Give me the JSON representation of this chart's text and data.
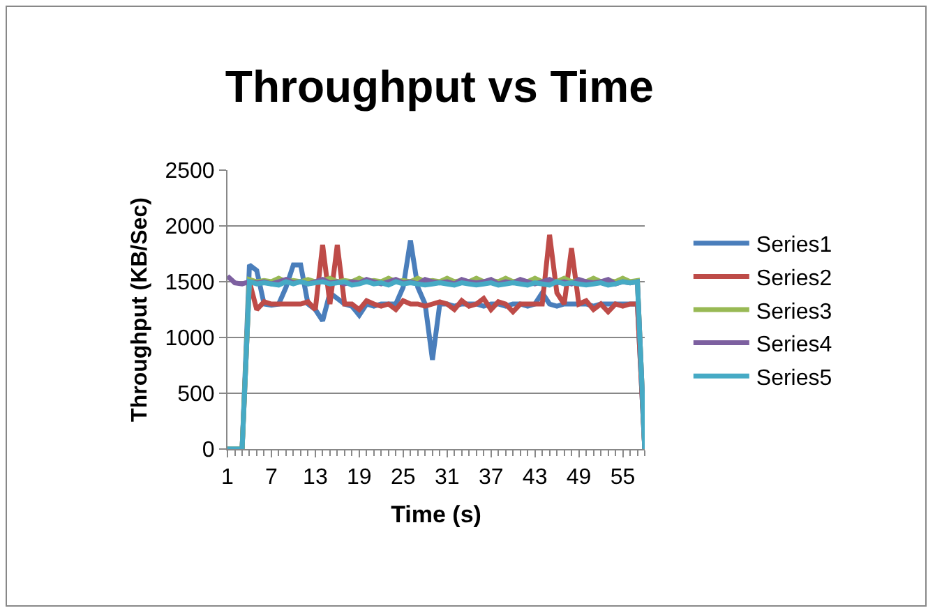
{
  "chart_data": {
    "type": "line",
    "title": "Throughput vs Time",
    "xlabel": "Time (s)",
    "ylabel": "Throughput (KB/Sec)",
    "categories": [
      "1",
      null,
      null,
      null,
      null,
      null,
      "7",
      null,
      null,
      null,
      null,
      null,
      "13",
      null,
      null,
      null,
      null,
      null,
      "19",
      null,
      null,
      null,
      null,
      null,
      "25",
      null,
      null,
      null,
      null,
      null,
      "31",
      null,
      null,
      null,
      null,
      null,
      "37",
      null,
      null,
      null,
      null,
      null,
      "43",
      null,
      null,
      null,
      null,
      null,
      "49",
      null,
      null,
      null,
      null,
      null,
      "55",
      null,
      null,
      null
    ],
    "series": [
      {
        "name": "Series1",
        "color": "#4a7ebb",
        "values": [
          0,
          0,
          0,
          1650,
          1600,
          1300,
          1290,
          1300,
          1450,
          1650,
          1650,
          1300,
          1250,
          1150,
          1400,
          1350,
          1300,
          1280,
          1200,
          1300,
          1280,
          1300,
          1300,
          1300,
          1450,
          1870,
          1450,
          1300,
          800,
          1300,
          1300,
          1280,
          1300,
          1300,
          1300,
          1280,
          1300,
          1300,
          1280,
          1300,
          1300,
          1280,
          1300,
          1400,
          1300,
          1280,
          1300,
          1300,
          1300,
          1300,
          1280,
          1300,
          1300,
          1300,
          1300,
          1300,
          1300,
          0
        ]
      },
      {
        "name": "Series2",
        "color": "#be4b48",
        "values": [
          null,
          null,
          0,
          1500,
          1250,
          1320,
          1300,
          1300,
          1300,
          1300,
          1300,
          1320,
          1250,
          1830,
          1300,
          1830,
          1300,
          1300,
          1250,
          1330,
          1300,
          1280,
          1300,
          1250,
          1330,
          1300,
          1300,
          1280,
          1300,
          1320,
          1300,
          1250,
          1330,
          1280,
          1300,
          1350,
          1250,
          1320,
          1300,
          1230,
          1300,
          1300,
          1300,
          1300,
          1920,
          1400,
          1300,
          1800,
          1300,
          1330,
          1250,
          1300,
          1230,
          1300,
          1280,
          1300,
          1300,
          0
        ]
      },
      {
        "name": "Series3",
        "color": "#98b954",
        "values": [
          0,
          0,
          0,
          1520,
          1500,
          1510,
          1500,
          1530,
          1500,
          1510,
          1500,
          1520,
          1500,
          1510,
          1530,
          1500,
          1510,
          1500,
          1530,
          1500,
          1510,
          1500,
          1530,
          1500,
          1510,
          1500,
          1530,
          1500,
          1510,
          1500,
          1530,
          1500,
          1510,
          1500,
          1530,
          1500,
          1510,
          1500,
          1530,
          1500,
          1510,
          1500,
          1530,
          1500,
          1510,
          1500,
          1530,
          1500,
          1510,
          1500,
          1530,
          1500,
          1510,
          1500,
          1530,
          1500,
          1510,
          0
        ]
      },
      {
        "name": "Series4",
        "color": "#7d60a0",
        "values": [
          1550,
          1490,
          1480,
          1500,
          1490,
          1500,
          1480,
          1500,
          1520,
          1490,
          1500,
          1480,
          1500,
          1520,
          1490,
          1500,
          1480,
          1500,
          1490,
          1520,
          1500,
          1480,
          1500,
          1520,
          1490,
          1500,
          1480,
          1520,
          1500,
          1490,
          1500,
          1480,
          1520,
          1500,
          1490,
          1500,
          1520,
          1480,
          1500,
          1490,
          1520,
          1500,
          1480,
          1500,
          1520,
          1490,
          1500,
          1480,
          1520,
          1500,
          1490,
          1500,
          1520,
          1480,
          1500,
          1490,
          1500,
          0
        ]
      },
      {
        "name": "Series5",
        "color": "#46aac5",
        "values": [
          0,
          0,
          0,
          1500,
          1480,
          1490,
          1480,
          1470,
          1500,
          1480,
          1500,
          1480,
          1490,
          1500,
          1480,
          1490,
          1500,
          1470,
          1480,
          1500,
          1480,
          1490,
          1470,
          1500,
          1480,
          1490,
          1480,
          1470,
          1480,
          1490,
          1480,
          1470,
          1490,
          1480,
          1470,
          1480,
          1490,
          1470,
          1480,
          1490,
          1480,
          1470,
          1490,
          1480,
          1470,
          1500,
          1480,
          1490,
          1480,
          1470,
          1480,
          1490,
          1470,
          1480,
          1500,
          1490,
          1500,
          0
        ]
      }
    ],
    "ylim": [
      0,
      2500
    ],
    "yticks": [
      0,
      500,
      1000,
      1500,
      2000,
      2500
    ],
    "grid": "y",
    "legend": "right",
    "marker": "none",
    "line_style": "solid"
  }
}
